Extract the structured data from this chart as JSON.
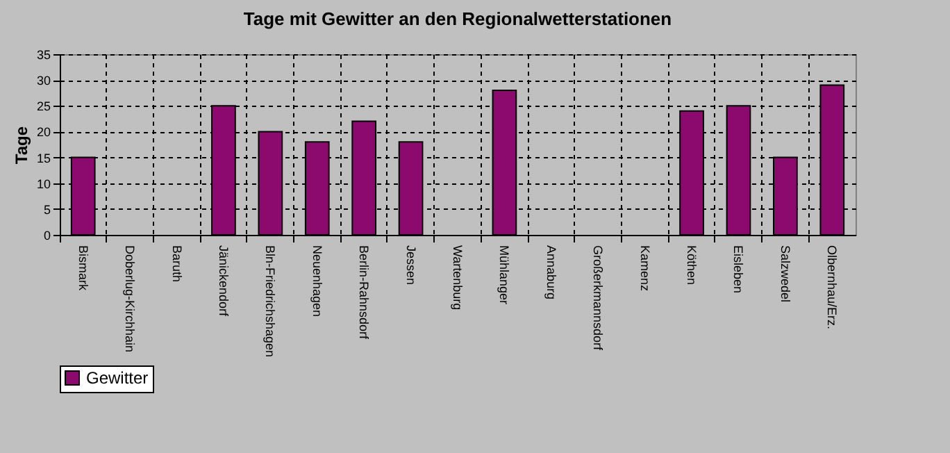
{
  "chart_data": {
    "type": "bar",
    "title": "Tage mit Gewitter an den Regionalwetterstationen",
    "ylabel": "Tage",
    "categories": [
      "Bismark",
      "Doberlug-Kirchhain",
      "Baruth",
      "Jänickendorf",
      "Bln-Friedrichshagen",
      "Neuenhagen",
      "Berlin-Rahnsdorf",
      "Jessen",
      "Wartenburg",
      "Mühlanger",
      "Annaburg",
      "Großerkmannsdorf",
      "Kamenz",
      "Köthen",
      "Eisleben",
      "Salzwedel",
      "Olbernhau/Erz."
    ],
    "series": [
      {
        "name": "Gewitter",
        "color": "#8c0a6e",
        "values": [
          15,
          null,
          null,
          25,
          20,
          18,
          22,
          18,
          null,
          28,
          null,
          null,
          null,
          24,
          25,
          15,
          29
        ]
      }
    ],
    "ylim": [
      0,
      35
    ],
    "yticks": [
      0,
      5,
      10,
      15,
      20,
      25,
      30,
      35
    ],
    "grid": true,
    "legend": "bottom"
  }
}
